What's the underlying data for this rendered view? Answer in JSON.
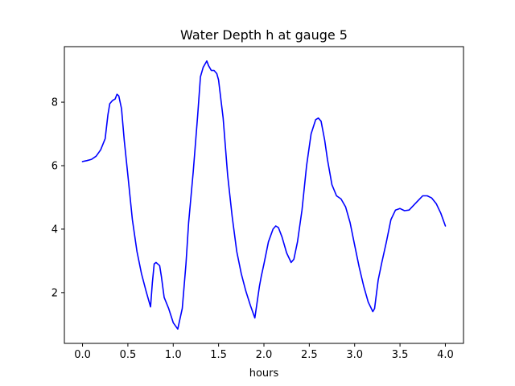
{
  "chart_data": {
    "type": "line",
    "title": "Water Depth h at gauge 5",
    "xlabel": "hours",
    "ylabel": "",
    "xlim": [
      -0.2,
      4.2
    ],
    "ylim": [
      0.4,
      9.75
    ],
    "xticks": [
      0.0,
      0.5,
      1.0,
      1.5,
      2.0,
      2.5,
      3.0,
      3.5,
      4.0
    ],
    "xtick_labels": [
      "0.0",
      "0.5",
      "1.0",
      "1.5",
      "2.0",
      "2.5",
      "3.0",
      "3.5",
      "4.0"
    ],
    "yticks": [
      2,
      4,
      6,
      8
    ],
    "ytick_labels": [
      "2",
      "4",
      "6",
      "8"
    ],
    "grid": false,
    "series": [
      {
        "color": "#0000ff",
        "x": [
          0.0,
          0.05,
          0.1,
          0.15,
          0.2,
          0.25,
          0.28,
          0.3,
          0.33,
          0.36,
          0.38,
          0.4,
          0.43,
          0.46,
          0.5,
          0.55,
          0.6,
          0.65,
          0.7,
          0.75,
          0.77,
          0.79,
          0.81,
          0.83,
          0.85,
          0.87,
          0.9,
          0.95,
          1.0,
          1.05,
          1.1,
          1.12,
          1.14,
          1.17,
          1.22,
          1.27,
          1.3,
          1.33,
          1.37,
          1.39,
          1.42,
          1.45,
          1.48,
          1.5,
          1.55,
          1.6,
          1.65,
          1.7,
          1.75,
          1.8,
          1.85,
          1.9,
          1.95,
          1.97,
          2.0,
          2.05,
          2.1,
          2.13,
          2.16,
          2.2,
          2.25,
          2.3,
          2.33,
          2.37,
          2.42,
          2.47,
          2.52,
          2.57,
          2.6,
          2.63,
          2.67,
          2.7,
          2.75,
          2.8,
          2.85,
          2.9,
          2.95,
          3.0,
          3.05,
          3.1,
          3.15,
          3.2,
          3.22,
          3.26,
          3.3,
          3.35,
          3.4,
          3.45,
          3.5,
          3.55,
          3.6,
          3.65,
          3.7,
          3.75,
          3.8,
          3.85,
          3.9,
          3.95,
          4.0
        ],
        "y": [
          6.13,
          6.16,
          6.2,
          6.3,
          6.5,
          6.85,
          7.6,
          7.95,
          8.05,
          8.1,
          8.25,
          8.2,
          7.8,
          6.8,
          5.7,
          4.3,
          3.3,
          2.6,
          2.05,
          1.55,
          2.3,
          2.9,
          2.95,
          2.9,
          2.85,
          2.5,
          1.85,
          1.5,
          1.05,
          0.85,
          1.5,
          2.2,
          2.9,
          4.2,
          5.8,
          7.6,
          8.8,
          9.1,
          9.3,
          9.15,
          9.0,
          9.0,
          8.9,
          8.7,
          7.5,
          5.7,
          4.4,
          3.3,
          2.6,
          2.05,
          1.6,
          1.2,
          2.2,
          2.5,
          2.9,
          3.6,
          4.0,
          4.1,
          4.05,
          3.75,
          3.25,
          2.95,
          3.05,
          3.6,
          4.6,
          6.0,
          7.0,
          7.45,
          7.5,
          7.4,
          6.8,
          6.2,
          5.4,
          5.05,
          4.95,
          4.7,
          4.2,
          3.5,
          2.8,
          2.2,
          1.7,
          1.4,
          1.5,
          2.4,
          2.95,
          3.6,
          4.3,
          4.6,
          4.65,
          4.58,
          4.6,
          4.75,
          4.9,
          5.05,
          5.05,
          4.98,
          4.8,
          4.5,
          4.1
        ]
      }
    ]
  }
}
